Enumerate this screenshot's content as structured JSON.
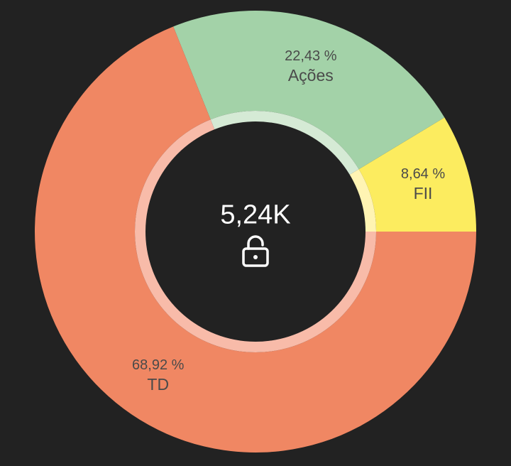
{
  "chart_data": {
    "type": "pie",
    "variant": "donut",
    "start": "3 o'clock, counter-clockwise",
    "categories": [
      "FII",
      "Ações",
      "TD"
    ],
    "values": [
      8.64,
      22.43,
      68.92
    ],
    "labels": [
      "8,64 %",
      "22,43 %",
      "68,92 %"
    ],
    "colors": [
      "#FCEC5F",
      "#A3D2A8",
      "#F08763"
    ],
    "ring_colors": [
      "#FFF4B3",
      "#D5EAD5",
      "#F8BBA9"
    ],
    "center_text": "5,24K",
    "center_icon": "unlock-icon"
  }
}
